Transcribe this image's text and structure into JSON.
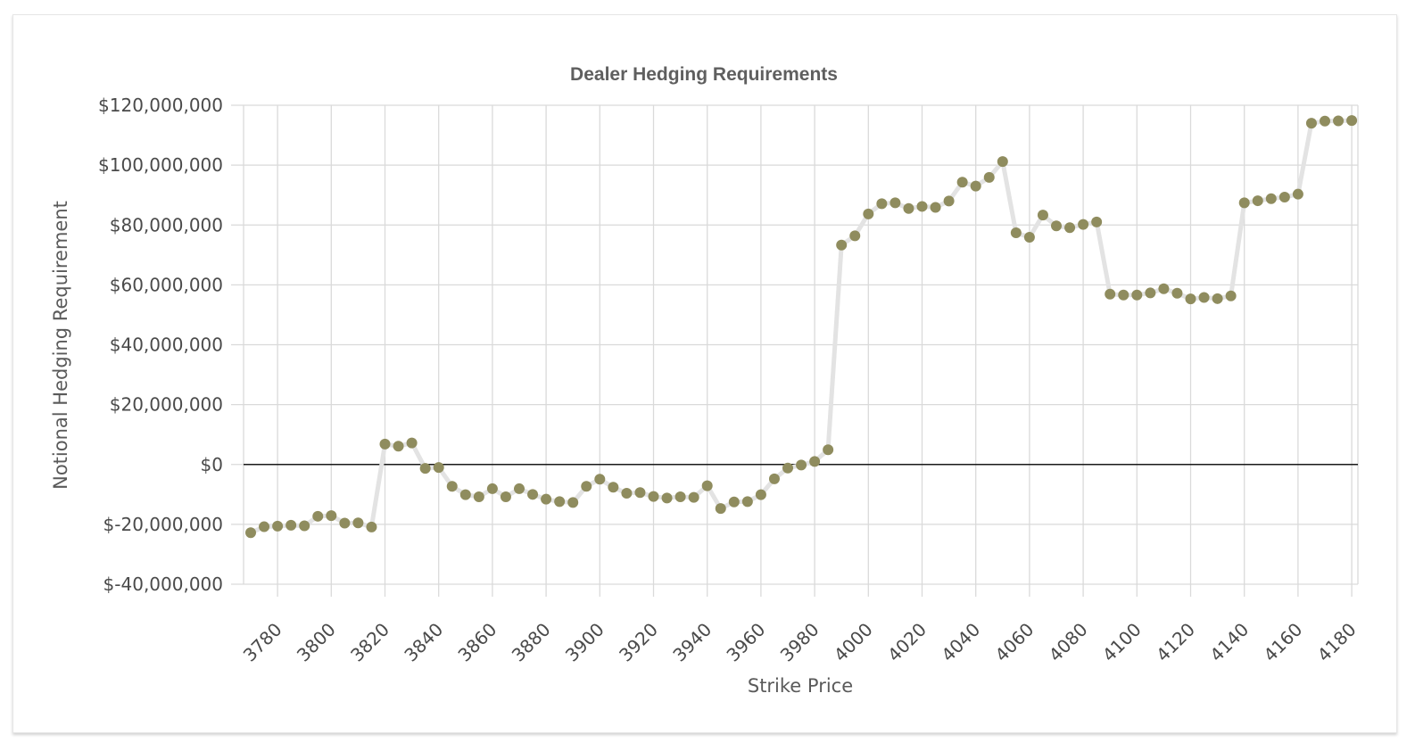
{
  "chart_data": {
    "type": "line",
    "title": "Dealer Hedging Requirements",
    "xlabel": "Strike Price",
    "ylabel": "Notional Hedging Requirement",
    "xlim": [
      3767,
      4182
    ],
    "ylim": [
      -40000000,
      120000000
    ],
    "x_ticks": [
      3780,
      3800,
      3820,
      3840,
      3860,
      3880,
      3900,
      3920,
      3940,
      3960,
      3980,
      4000,
      4020,
      4040,
      4060,
      4080,
      4100,
      4120,
      4140,
      4160,
      4180
    ],
    "y_ticks": [
      -40000000,
      -20000000,
      0,
      20000000,
      40000000,
      60000000,
      80000000,
      100000000,
      120000000
    ],
    "y_tick_labels": [
      "$-40,000,000",
      "$-20,000,000",
      "$0",
      "$20,000,000",
      "$40,000,000",
      "$60,000,000",
      "$80,000,000",
      "$100,000,000",
      "$120,000,000"
    ],
    "grid": true,
    "legend": "none",
    "colors": {
      "line": "#e3e3e3",
      "marker": "#8f8c5e",
      "grid": "#dadada",
      "zero_line": "#1a1a1a"
    },
    "series": [
      {
        "x": [
          3770,
          3775,
          3780,
          3785,
          3790,
          3795,
          3800,
          3805,
          3810,
          3815,
          3820,
          3825,
          3830,
          3835,
          3840,
          3845,
          3850,
          3855,
          3860,
          3865,
          3870,
          3875,
          3880,
          3885,
          3890,
          3895,
          3900,
          3905,
          3910,
          3915,
          3920,
          3925,
          3930,
          3935,
          3940,
          3945,
          3950,
          3955,
          3960,
          3965,
          3970,
          3975,
          3980,
          3985,
          3990,
          3995,
          4000,
          4005,
          4010,
          4015,
          4020,
          4025,
          4030,
          4035,
          4040,
          4045,
          4050,
          4055,
          4060,
          4065,
          4070,
          4075,
          4080,
          4085,
          4090,
          4095,
          4100,
          4105,
          4110,
          4115,
          4120,
          4125,
          4130,
          4135,
          4140,
          4145,
          4150,
          4155,
          4160,
          4165,
          4170,
          4175,
          4180
        ],
        "y": [
          -22800000,
          -20800000,
          -20600000,
          -20300000,
          -20500000,
          -17300000,
          -17100000,
          -19600000,
          -19500000,
          -20900000,
          6800000,
          6100000,
          7200000,
          -1300000,
          -1000000,
          -7300000,
          -10100000,
          -10800000,
          -8100000,
          -10800000,
          -8100000,
          -10000000,
          -11600000,
          -12400000,
          -12700000,
          -7300000,
          -4900000,
          -7600000,
          -9600000,
          -9400000,
          -10700000,
          -11200000,
          -10800000,
          -11000000,
          -7100000,
          -14700000,
          -12500000,
          -12400000,
          -10100000,
          -4800000,
          -1200000,
          -200000,
          1000000,
          4900000,
          73300000,
          76400000,
          83700000,
          87100000,
          87400000,
          85500000,
          86200000,
          85900000,
          88000000,
          94300000,
          93000000,
          95900000,
          101200000,
          77400000,
          75900000,
          83300000,
          79700000,
          79100000,
          80200000,
          81000000,
          56900000,
          56600000,
          56600000,
          57300000,
          58700000,
          57200000,
          55300000,
          55800000,
          55400000,
          56300000,
          87400000,
          88100000,
          88800000,
          89300000,
          90300000,
          114000000,
          114700000,
          114800000,
          114900000
        ]
      }
    ]
  }
}
